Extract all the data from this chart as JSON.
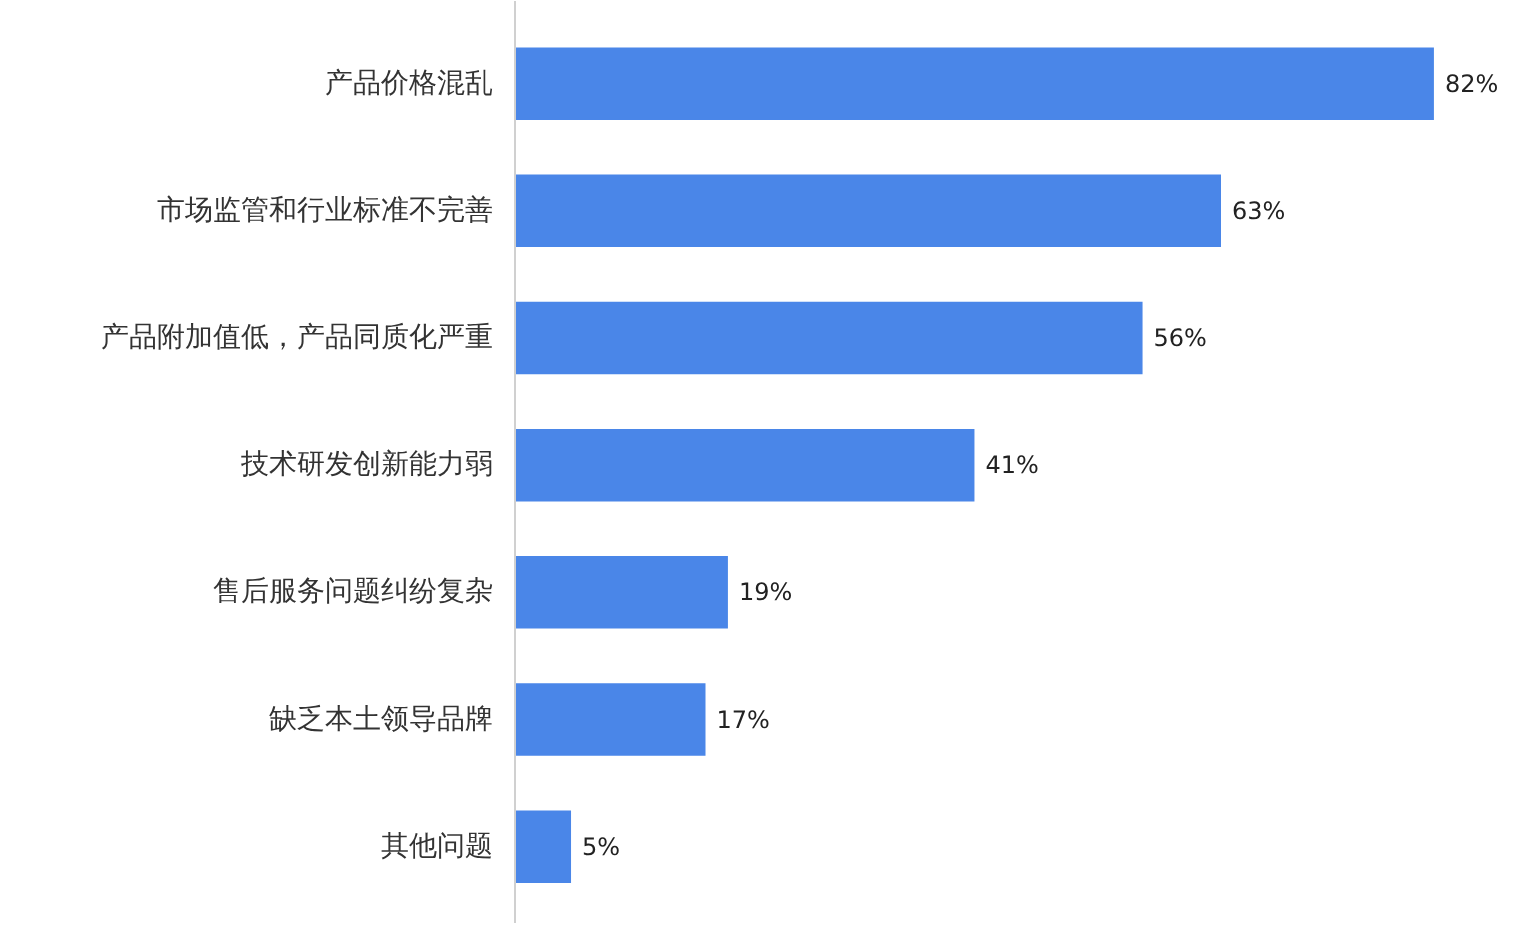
{
  "chart_data": {
    "type": "bar",
    "orientation": "horizontal",
    "categories": [
      "产品价格混乱",
      "市场监管和行业标准不完善",
      "产品附加值低，产品同质化严重",
      "技术研发创新能力弱",
      "售后服务问题纠纷复杂",
      "缺乏本土领导品牌",
      "其他问题"
    ],
    "values": [
      82,
      63,
      56,
      41,
      19,
      17,
      5
    ],
    "value_labels": [
      "82%",
      "63%",
      "56%",
      "41%",
      "19%",
      "17%",
      "5%"
    ],
    "color": "#4a86e8",
    "grid": false
  }
}
